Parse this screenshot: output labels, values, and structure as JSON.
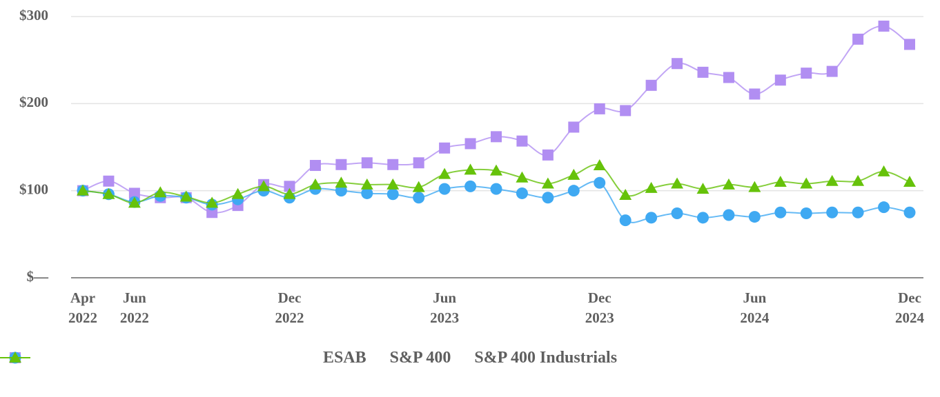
{
  "chart_data": {
    "type": "line",
    "categories": [
      "Apr 2022",
      null,
      "Jun 2022",
      null,
      null,
      null,
      null,
      null,
      "Dec 2022",
      null,
      null,
      null,
      null,
      null,
      "Jun 2023",
      null,
      null,
      null,
      null,
      null,
      "Dec 2023",
      null,
      null,
      null,
      null,
      null,
      "Jun 2024",
      null,
      null,
      null,
      null,
      null,
      "Dec 2024"
    ],
    "series": [
      {
        "name": "ESAB",
        "color": "#b18ef2",
        "marker": "square",
        "values": [
          100,
          111,
          97,
          92,
          92,
          75,
          83,
          107,
          105,
          129,
          130,
          132,
          130,
          132,
          149,
          154,
          162,
          157,
          141,
          173,
          194,
          192,
          221,
          246,
          236,
          230,
          211,
          227,
          235,
          237,
          274,
          289,
          268
        ]
      },
      {
        "name": "S&P 400",
        "color": "#3fa9f2",
        "marker": "circle",
        "values": [
          100,
          96,
          87,
          94,
          92,
          84,
          90,
          100,
          92,
          102,
          100,
          97,
          96,
          92,
          102,
          105,
          102,
          97,
          92,
          100,
          109,
          66,
          69,
          74,
          69,
          72,
          70,
          75,
          74,
          75,
          75,
          81,
          75
        ]
      },
      {
        "name": "S&P 400 Industrials",
        "color": "#66c20a",
        "marker": "triangle",
        "values": [
          100,
          96,
          86,
          98,
          93,
          86,
          96,
          105,
          96,
          107,
          109,
          107,
          107,
          104,
          119,
          124,
          123,
          115,
          108,
          118,
          129,
          95,
          103,
          108,
          102,
          107,
          104,
          110,
          108,
          111,
          111,
          122,
          110
        ]
      }
    ],
    "ylim": [
      0,
      300
    ],
    "yticks": [
      {
        "value": 0,
        "label": "$—"
      },
      {
        "value": 100,
        "label": "$100"
      },
      {
        "value": 200,
        "label": "$200"
      },
      {
        "value": 300,
        "label": "$300"
      }
    ],
    "grid": true,
    "legend": "bottom"
  }
}
